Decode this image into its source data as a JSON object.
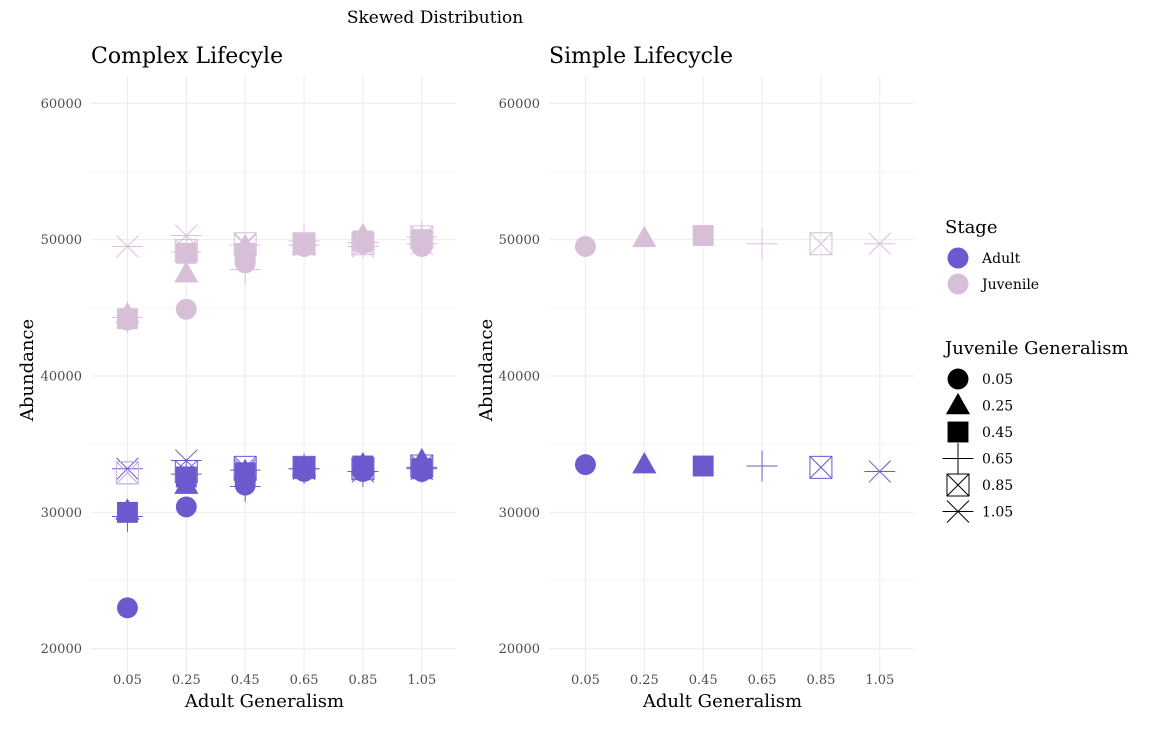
{
  "title": "Skewed Distribution",
  "colors": {
    "Adult": "#6a5acd",
    "Juvenile": "#d8bfd8",
    "grid": "#ebebeb",
    "tick": "#4d4d4d"
  },
  "chart_data": [
    {
      "type": "scatter",
      "title": "Complex Lifecyle",
      "xlabel": "Adult Generalism",
      "ylabel": "Abundance",
      "categories": [
        "0.05",
        "0.25",
        "0.45",
        "0.65",
        "0.85",
        "1.05"
      ],
      "ylim": [
        18000,
        62000
      ],
      "yticks": [
        20000,
        30000,
        40000,
        50000,
        60000
      ],
      "ytick_labels": [
        "20000",
        "30000",
        "40000",
        "50000",
        "60000"
      ],
      "grid": true,
      "series": [
        {
          "name": "Adult",
          "points": [
            {
              "x": "0.05",
              "j": "0.05",
              "y": 23000
            },
            {
              "x": "0.05",
              "j": "0.25",
              "y": 30100
            },
            {
              "x": "0.05",
              "j": "0.45",
              "y": 30000
            },
            {
              "x": "0.05",
              "j": "0.65",
              "y": 29700
            },
            {
              "x": "0.05",
              "j": "0.85",
              "y": 32900
            },
            {
              "x": "0.05",
              "j": "1.05",
              "y": 33200
            },
            {
              "x": "0.25",
              "j": "0.05",
              "y": 30400
            },
            {
              "x": "0.25",
              "j": "0.25",
              "y": 32000
            },
            {
              "x": "0.25",
              "j": "0.45",
              "y": 32600
            },
            {
              "x": "0.25",
              "j": "0.65",
              "y": 32800
            },
            {
              "x": "0.25",
              "j": "0.85",
              "y": 33000
            },
            {
              "x": "0.25",
              "j": "1.05",
              "y": 33800
            },
            {
              "x": "0.45",
              "j": "0.05",
              "y": 32000
            },
            {
              "x": "0.45",
              "j": "0.25",
              "y": 33000
            },
            {
              "x": "0.45",
              "j": "0.45",
              "y": 32900
            },
            {
              "x": "0.45",
              "j": "0.65",
              "y": 31900
            },
            {
              "x": "0.45",
              "j": "0.85",
              "y": 33300
            },
            {
              "x": "0.45",
              "j": "1.05",
              "y": 33100
            },
            {
              "x": "0.65",
              "j": "0.05",
              "y": 33000
            },
            {
              "x": "0.65",
              "j": "0.25",
              "y": 33300
            },
            {
              "x": "0.65",
              "j": "0.45",
              "y": 33300
            },
            {
              "x": "0.65",
              "j": "0.65",
              "y": 33200
            },
            {
              "x": "0.65",
              "j": "0.85",
              "y": 33300
            },
            {
              "x": "0.65",
              "j": "1.05",
              "y": 33200
            },
            {
              "x": "0.85",
              "j": "0.05",
              "y": 33000
            },
            {
              "x": "0.85",
              "j": "0.25",
              "y": 33500
            },
            {
              "x": "0.85",
              "j": "0.45",
              "y": 33400
            },
            {
              "x": "0.85",
              "j": "0.65",
              "y": 33000
            },
            {
              "x": "0.85",
              "j": "0.85",
              "y": 33200
            },
            {
              "x": "0.85",
              "j": "1.05",
              "y": 33000
            },
            {
              "x": "1.05",
              "j": "0.05",
              "y": 33000
            },
            {
              "x": "1.05",
              "j": "0.25",
              "y": 33800
            },
            {
              "x": "1.05",
              "j": "0.45",
              "y": 33200
            },
            {
              "x": "1.05",
              "j": "0.65",
              "y": 33300
            },
            {
              "x": "1.05",
              "j": "0.85",
              "y": 33400
            },
            {
              "x": "1.05",
              "j": "1.05",
              "y": 33200
            }
          ]
        },
        {
          "name": "Juvenile",
          "points": [
            {
              "x": "0.05",
              "j": "0.05",
              "y": 44100
            },
            {
              "x": "0.05",
              "j": "0.25",
              "y": 44500
            },
            {
              "x": "0.05",
              "j": "0.45",
              "y": 44200
            },
            {
              "x": "0.05",
              "j": "0.65",
              "y": 44300
            },
            {
              "x": "0.05",
              "j": "0.85",
              "y": 32900
            },
            {
              "x": "0.05",
              "j": "1.05",
              "y": 49500
            },
            {
              "x": "0.25",
              "j": "0.05",
              "y": 44900
            },
            {
              "x": "0.25",
              "j": "0.25",
              "y": 47500
            },
            {
              "x": "0.25",
              "j": "0.45",
              "y": 49000
            },
            {
              "x": "0.25",
              "j": "0.65",
              "y": 49100
            },
            {
              "x": "0.25",
              "j": "0.85",
              "y": 49200
            },
            {
              "x": "0.25",
              "j": "1.05",
              "y": 50300
            },
            {
              "x": "0.45",
              "j": "0.05",
              "y": 48300
            },
            {
              "x": "0.45",
              "j": "0.25",
              "y": 49500
            },
            {
              "x": "0.45",
              "j": "0.45",
              "y": 49000
            },
            {
              "x": "0.45",
              "j": "0.65",
              "y": 47800
            },
            {
              "x": "0.45",
              "j": "0.85",
              "y": 49700
            },
            {
              "x": "0.45",
              "j": "1.05",
              "y": 49600
            },
            {
              "x": "0.65",
              "j": "0.05",
              "y": 49500
            },
            {
              "x": "0.65",
              "j": "0.25",
              "y": 49600
            },
            {
              "x": "0.65",
              "j": "0.45",
              "y": 49700
            },
            {
              "x": "0.65",
              "j": "0.65",
              "y": 49900
            },
            {
              "x": "0.65",
              "j": "0.85",
              "y": 49700
            },
            {
              "x": "0.65",
              "j": "1.05",
              "y": 49600
            },
            {
              "x": "0.85",
              "j": "0.05",
              "y": 49700
            },
            {
              "x": "0.85",
              "j": "0.25",
              "y": 50300
            },
            {
              "x": "0.85",
              "j": "0.45",
              "y": 49900
            },
            {
              "x": "0.85",
              "j": "0.65",
              "y": 49800
            },
            {
              "x": "0.85",
              "j": "0.85",
              "y": 49700
            },
            {
              "x": "0.85",
              "j": "1.05",
              "y": 49500
            },
            {
              "x": "1.05",
              "j": "0.05",
              "y": 49500
            },
            {
              "x": "1.05",
              "j": "0.25",
              "y": 50000
            },
            {
              "x": "1.05",
              "j": "0.45",
              "y": 50000
            },
            {
              "x": "1.05",
              "j": "0.65",
              "y": 50200
            },
            {
              "x": "1.05",
              "j": "0.85",
              "y": 50200
            },
            {
              "x": "1.05",
              "j": "1.05",
              "y": 49700
            }
          ]
        }
      ]
    },
    {
      "type": "scatter",
      "title": "Simple Lifecycle",
      "xlabel": "Adult Generalism",
      "ylabel": "Abundance",
      "categories": [
        "0.05",
        "0.25",
        "0.45",
        "0.65",
        "0.85",
        "1.05"
      ],
      "ylim": [
        18000,
        62000
      ],
      "yticks": [
        20000,
        30000,
        40000,
        50000,
        60000
      ],
      "ytick_labels": [
        "20000",
        "30000",
        "40000",
        "50000",
        "60000"
      ],
      "grid": true,
      "series": [
        {
          "name": "Adult",
          "points": [
            {
              "x": "0.05",
              "j": "0.05",
              "y": 33500
            },
            {
              "x": "0.25",
              "j": "0.25",
              "y": 33500
            },
            {
              "x": "0.45",
              "j": "0.45",
              "y": 33400
            },
            {
              "x": "0.65",
              "j": "0.65",
              "y": 33400
            },
            {
              "x": "0.85",
              "j": "0.85",
              "y": 33300
            },
            {
              "x": "1.05",
              "j": "1.05",
              "y": 33000
            }
          ]
        },
        {
          "name": "Juvenile",
          "points": [
            {
              "x": "0.05",
              "j": "0.05",
              "y": 49500
            },
            {
              "x": "0.25",
              "j": "0.25",
              "y": 50100
            },
            {
              "x": "0.45",
              "j": "0.45",
              "y": 50300
            },
            {
              "x": "0.65",
              "j": "0.65",
              "y": 49700
            },
            {
              "x": "0.85",
              "j": "0.85",
              "y": 49700
            },
            {
              "x": "1.05",
              "j": "1.05",
              "y": 49700
            }
          ]
        }
      ]
    }
  ],
  "legend": {
    "placement": "right",
    "stage_title": "Stage",
    "stages": [
      "Adult",
      "Juvenile"
    ],
    "shape_title": "Juvenile Generalism",
    "shapes": [
      {
        "label": "0.05",
        "shape": "circle"
      },
      {
        "label": "0.25",
        "shape": "triangle"
      },
      {
        "label": "0.45",
        "shape": "square"
      },
      {
        "label": "0.65",
        "shape": "plus"
      },
      {
        "label": "0.85",
        "shape": "square-cross"
      },
      {
        "label": "1.05",
        "shape": "star"
      }
    ]
  }
}
